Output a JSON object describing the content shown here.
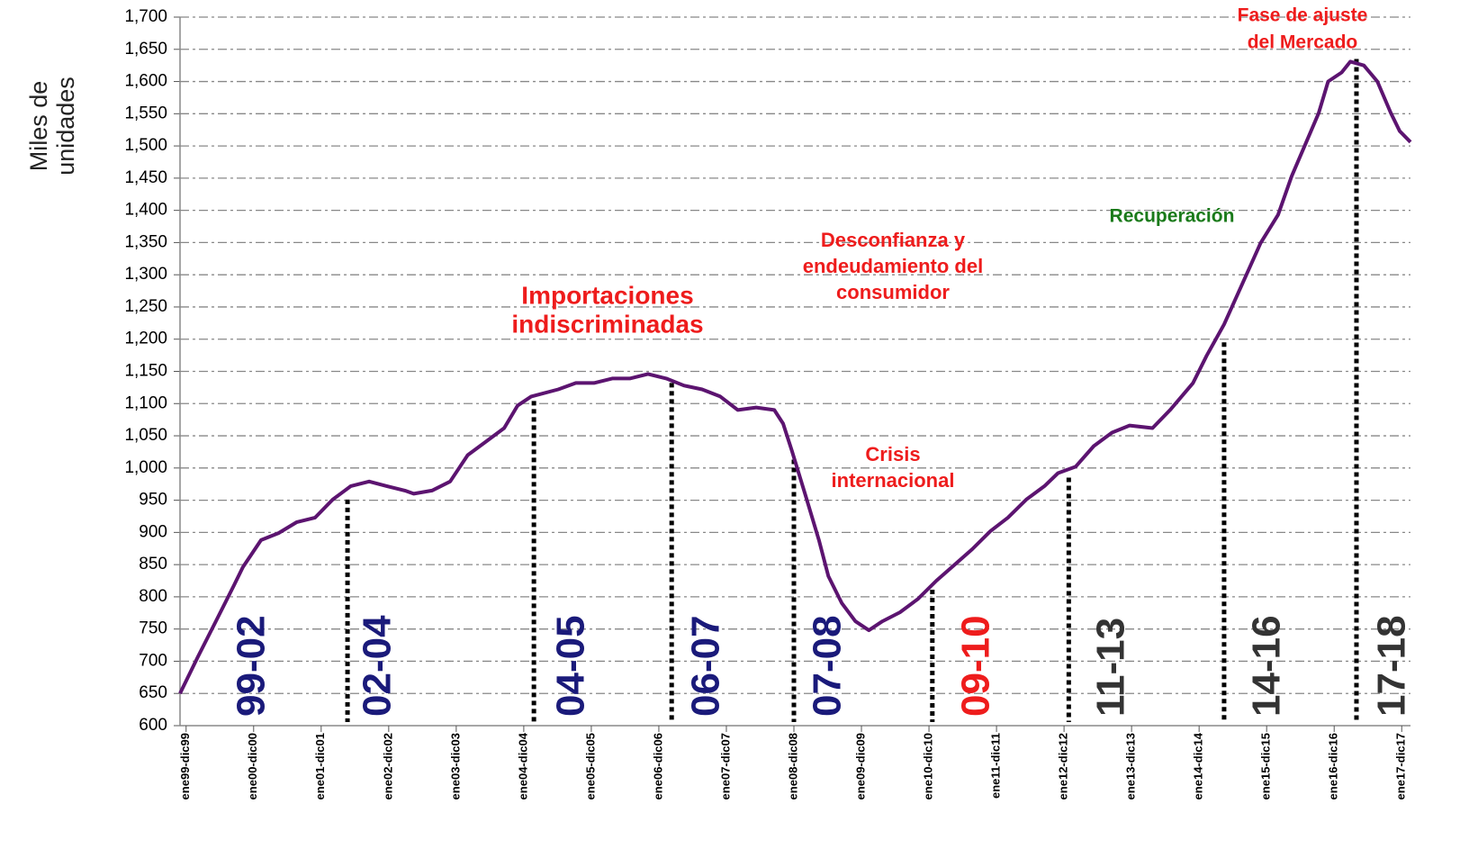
{
  "chart_data": {
    "type": "line",
    "y_label": [
      "Miles de",
      "unidades"
    ],
    "xlim": [
      1998.91,
      2017.13
    ],
    "xticks": [
      {
        "value": 1999,
        "label": "ene99-dic99"
      },
      {
        "value": 2000,
        "label": "ene00-dic00"
      },
      {
        "value": 2001,
        "label": "ene01-dic01"
      },
      {
        "value": 2002,
        "label": "ene02-dic02"
      },
      {
        "value": 2003,
        "label": "ene03-dic03"
      },
      {
        "value": 2004,
        "label": "ene04-dic04"
      },
      {
        "value": 2005,
        "label": "ene05-dic05"
      },
      {
        "value": 2006,
        "label": "ene06-dic06"
      },
      {
        "value": 2007,
        "label": "ene07-dic07"
      },
      {
        "value": 2008,
        "label": "ene08-dic08"
      },
      {
        "value": 2009,
        "label": "ene09-dic09"
      },
      {
        "value": 2010,
        "label": "ene10-dic10"
      },
      {
        "value": 2011,
        "label": "ene11-dic11"
      },
      {
        "value": 2012,
        "label": "ene12-dic12"
      },
      {
        "value": 2013,
        "label": "ene13-dic13"
      },
      {
        "value": 2014,
        "label": "ene14-dic14"
      },
      {
        "value": 2015,
        "label": "ene15-dic15"
      },
      {
        "value": 2016,
        "label": "ene16-dic16"
      },
      {
        "value": 2017,
        "label": "ene17-dic17"
      }
    ],
    "ylim": [
      600,
      1700
    ],
    "yticks": [
      {
        "value": 600,
        "label": "600"
      },
      {
        "value": 650,
        "label": "650"
      },
      {
        "value": 700,
        "label": "700"
      },
      {
        "value": 750,
        "label": "750"
      },
      {
        "value": 800,
        "label": "800"
      },
      {
        "value": 850,
        "label": "850"
      },
      {
        "value": 900,
        "label": "900"
      },
      {
        "value": 950,
        "label": "950"
      },
      {
        "value": 1000,
        "label": "1,000"
      },
      {
        "value": 1050,
        "label": "1,050"
      },
      {
        "value": 1100,
        "label": "1,100"
      },
      {
        "value": 1150,
        "label": "1,150"
      },
      {
        "value": 1200,
        "label": "1,200"
      },
      {
        "value": 1250,
        "label": "1,250"
      },
      {
        "value": 1300,
        "label": "1,300"
      },
      {
        "value": 1350,
        "label": "1,350"
      },
      {
        "value": 1400,
        "label": "1,400"
      },
      {
        "value": 1450,
        "label": "1,450"
      },
      {
        "value": 1500,
        "label": "1,500"
      },
      {
        "value": 1550,
        "label": "1,550"
      },
      {
        "value": 1600,
        "label": "1,600"
      },
      {
        "value": 1650,
        "label": "1,650"
      },
      {
        "value": 1700,
        "label": "1,700"
      }
    ],
    "grid": true,
    "series": [
      {
        "color": "#5c1470",
        "x": [
          1998.91,
          1999.17,
          1999.44,
          1999.71,
          1999.84,
          2000.11,
          2000.37,
          2000.64,
          2000.91,
          2001.17,
          2001.44,
          2001.71,
          2001.97,
          2002.24,
          2002.37,
          2002.64,
          2002.91,
          2003.17,
          2003.44,
          2003.71,
          2003.91,
          2004.11,
          2004.51,
          2004.77,
          2005.04,
          2005.31,
          2005.57,
          2005.84,
          2006.11,
          2006.37,
          2006.64,
          2006.91,
          2007.17,
          2007.44,
          2007.71,
          2007.84,
          2007.97,
          2008.17,
          2008.37,
          2008.51,
          2008.71,
          2008.91,
          2009.11,
          2009.31,
          2009.57,
          2009.84,
          2010.11,
          2010.37,
          2010.64,
          2010.91,
          2011.17,
          2011.44,
          2011.71,
          2011.91,
          2012.17,
          2012.44,
          2012.71,
          2012.97,
          2013.31,
          2013.57,
          2013.91,
          2014.11,
          2014.37,
          2014.64,
          2014.91,
          2015.17,
          2015.37,
          2015.57,
          2015.77,
          2015.91,
          2016.11,
          2016.24,
          2016.44,
          2016.64,
          2016.84,
          2016.97,
          2017.13
        ],
        "values": [
          650,
          706,
          762,
          818,
          846,
          888,
          899,
          916,
          923,
          951,
          972,
          979,
          972,
          965,
          960,
          965,
          979,
          1020,
          1041,
          1062,
          1097,
          1111,
          1122,
          1132,
          1132,
          1139,
          1139,
          1146,
          1139,
          1128,
          1122,
          1111,
          1090,
          1094,
          1090,
          1069,
          1027,
          958,
          888,
          832,
          790,
          762,
          748,
          762,
          776,
          797,
          825,
          849,
          874,
          902,
          923,
          951,
          972,
          992,
          1002,
          1034,
          1055,
          1066,
          1062,
          1090,
          1132,
          1174,
          1223,
          1286,
          1349,
          1393,
          1453,
          1502,
          1551,
          1600,
          1614,
          1631,
          1625,
          1600,
          1551,
          1523,
          1506
        ]
      }
    ],
    "markers": [
      {
        "x": 2001.39,
        "y": 951
      },
      {
        "x": 2004.15,
        "y": 1104
      },
      {
        "x": 2006.19,
        "y": 1132
      },
      {
        "x": 2008.0,
        "y": 1013
      },
      {
        "x": 2010.05,
        "y": 811
      },
      {
        "x": 2012.07,
        "y": 985
      },
      {
        "x": 2014.37,
        "y": 1195
      },
      {
        "x": 2016.33,
        "y": 1635
      }
    ],
    "period_labels": [
      {
        "text": "99-02",
        "color": "#1a1a7a"
      },
      {
        "text": "02-04",
        "color": "#1a1a7a"
      },
      {
        "text": "04-05",
        "color": "#1a1a7a"
      },
      {
        "text": "06-07",
        "color": "#1a1a7a"
      },
      {
        "text": "07-08",
        "color": "#1a1a7a"
      },
      {
        "text": "09-10",
        "color": "#ee1c1c"
      },
      {
        "text": "11-13",
        "color": "#333333"
      },
      {
        "text": "14-16",
        "color": "#333333"
      },
      {
        "text": "17-18",
        "color": "#333333"
      }
    ],
    "annotations": [
      {
        "lines": [
          "Importaciones",
          "indiscriminadas"
        ],
        "color": "#ee1c1c"
      },
      {
        "lines": [
          "Desconfianza y",
          "endeudamiento del",
          "consumidor"
        ],
        "color": "#ee1c1c"
      },
      {
        "lines": [
          "Crisis",
          "internacional"
        ],
        "color": "#ee1c1c"
      },
      {
        "lines": [
          "Recuperación"
        ],
        "color": "#1a7a1a"
      },
      {
        "lines": [
          "Fase de ajuste",
          "del Mercado"
        ],
        "color": "#ee1c1c"
      }
    ]
  }
}
